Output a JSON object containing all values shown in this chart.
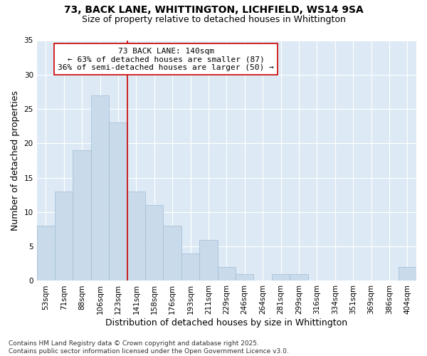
{
  "title_line1": "73, BACK LANE, WHITTINGTON, LICHFIELD, WS14 9SA",
  "title_line2": "Size of property relative to detached houses in Whittington",
  "xlabel": "Distribution of detached houses by size in Whittington",
  "ylabel": "Number of detached properties",
  "bar_color": "#c9daea",
  "bar_edge_color": "#a0bcd4",
  "background_color": "#ddeaf5",
  "categories": [
    "53sqm",
    "71sqm",
    "88sqm",
    "106sqm",
    "123sqm",
    "141sqm",
    "158sqm",
    "176sqm",
    "193sqm",
    "211sqm",
    "229sqm",
    "246sqm",
    "264sqm",
    "281sqm",
    "299sqm",
    "316sqm",
    "334sqm",
    "351sqm",
    "369sqm",
    "386sqm",
    "404sqm"
  ],
  "values": [
    8,
    13,
    19,
    27,
    23,
    13,
    11,
    8,
    4,
    6,
    2,
    1,
    0,
    1,
    1,
    0,
    0,
    0,
    0,
    0,
    2
  ],
  "ylim": [
    0,
    35
  ],
  "yticks": [
    0,
    5,
    10,
    15,
    20,
    25,
    30,
    35
  ],
  "vline_x_index": 5,
  "vline_color": "#cc0000",
  "annotation_text": "73 BACK LANE: 140sqm\n← 63% of detached houses are smaller (87)\n36% of semi-detached houses are larger (50) →",
  "annotation_box_color": "#ffffff",
  "annotation_box_edge_color": "#cc0000",
  "footer_text": "Contains HM Land Registry data © Crown copyright and database right 2025.\nContains public sector information licensed under the Open Government Licence v3.0.",
  "title_fontsize": 10,
  "subtitle_fontsize": 9,
  "axis_label_fontsize": 9,
  "tick_fontsize": 7.5,
  "annotation_fontsize": 8,
  "footer_fontsize": 6.5
}
